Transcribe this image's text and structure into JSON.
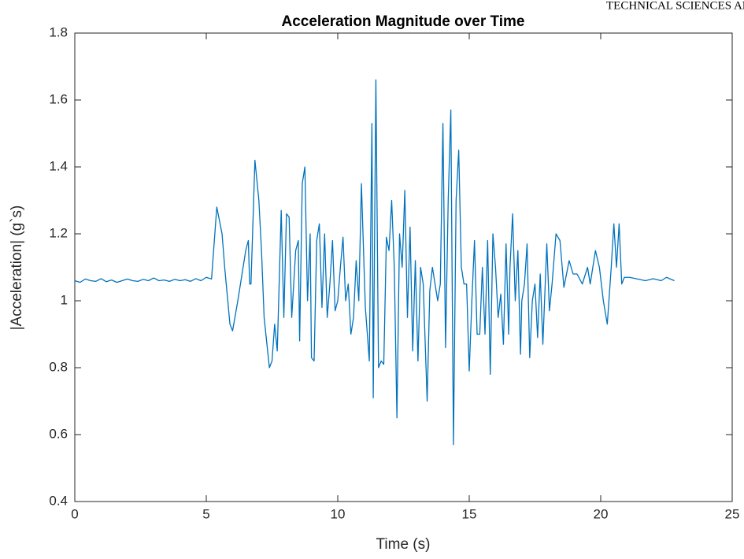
{
  "page_header": "TECHNICAL SCIENCES AND TECH",
  "chart_data": {
    "type": "line",
    "title": "Acceleration Magnitude over Time",
    "x_label": "Time (s)",
    "y_label": "|Acceleration| (g`s)",
    "xlim": [
      0,
      25
    ],
    "xticks": [
      0,
      5,
      10,
      15,
      20,
      25
    ],
    "ylim": [
      0.4,
      1.8
    ],
    "yticks": [
      0.4,
      0.6,
      0.8,
      1,
      1.2,
      1.4,
      1.6,
      1.8
    ],
    "grid": false,
    "series": [
      {
        "name": "|Acceleration|",
        "color": "#0072bd",
        "x": [
          0,
          0.2,
          0.4,
          0.6,
          0.8,
          1.0,
          1.2,
          1.4,
          1.6,
          1.8,
          2.0,
          2.2,
          2.4,
          2.6,
          2.8,
          3.0,
          3.2,
          3.4,
          3.6,
          3.8,
          4.0,
          4.2,
          4.4,
          4.6,
          4.8,
          5.0,
          5.2,
          5.4,
          5.6,
          5.7,
          5.9,
          6.0,
          6.2,
          6.4,
          6.5,
          6.6,
          6.65,
          6.7,
          6.85,
          7.0,
          7.1,
          7.2,
          7.4,
          7.5,
          7.6,
          7.7,
          7.85,
          7.95,
          8.05,
          8.15,
          8.25,
          8.4,
          8.5,
          8.55,
          8.65,
          8.75,
          8.85,
          8.95,
          9.0,
          9.1,
          9.2,
          9.3,
          9.4,
          9.5,
          9.6,
          9.7,
          9.8,
          9.9,
          10.0,
          10.1,
          10.2,
          10.3,
          10.4,
          10.5,
          10.6,
          10.7,
          10.8,
          10.9,
          11.0,
          11.05,
          11.2,
          11.3,
          11.35,
          11.45,
          11.55,
          11.65,
          11.75,
          11.85,
          11.95,
          12.05,
          12.15,
          12.25,
          12.35,
          12.45,
          12.55,
          12.65,
          12.75,
          12.85,
          12.95,
          13.05,
          13.15,
          13.25,
          13.4,
          13.5,
          13.6,
          13.7,
          13.8,
          13.9,
          14.0,
          14.1,
          14.2,
          14.3,
          14.4,
          14.5,
          14.6,
          14.7,
          14.8,
          14.9,
          15.0,
          15.1,
          15.2,
          15.3,
          15.4,
          15.5,
          15.6,
          15.7,
          15.8,
          15.9,
          16.0,
          16.1,
          16.2,
          16.3,
          16.4,
          16.5,
          16.55,
          16.65,
          16.75,
          16.85,
          16.95,
          17.0,
          17.1,
          17.2,
          17.3,
          17.4,
          17.5,
          17.6,
          17.7,
          17.8,
          17.95,
          18.05,
          18.15,
          18.3,
          18.45,
          18.6,
          18.8,
          18.95,
          19.1,
          19.3,
          19.5,
          19.6,
          19.8,
          19.95,
          20.1,
          20.25,
          20.4,
          20.5,
          20.6,
          20.7,
          20.8,
          20.9,
          21.1,
          21.4,
          21.7,
          22.0,
          22.3,
          22.5,
          22.8
        ],
        "values": [
          1.06,
          1.055,
          1.065,
          1.06,
          1.058,
          1.066,
          1.057,
          1.062,
          1.055,
          1.06,
          1.065,
          1.06,
          1.058,
          1.064,
          1.06,
          1.068,
          1.06,
          1.062,
          1.058,
          1.064,
          1.06,
          1.063,
          1.058,
          1.066,
          1.06,
          1.07,
          1.065,
          1.28,
          1.2,
          1.1,
          0.93,
          0.91,
          1.0,
          1.1,
          1.15,
          1.18,
          1.05,
          1.05,
          1.42,
          1.3,
          1.15,
          0.95,
          0.8,
          0.82,
          0.93,
          0.85,
          1.27,
          0.95,
          1.26,
          1.25,
          0.95,
          1.15,
          1.18,
          0.88,
          1.35,
          1.4,
          1.0,
          1.2,
          0.83,
          0.82,
          1.18,
          1.23,
          0.98,
          1.2,
          0.95,
          1.05,
          1.18,
          0.97,
          1.0,
          1.1,
          1.19,
          1.0,
          1.05,
          0.9,
          0.95,
          1.12,
          1.0,
          1.35,
          1.1,
          0.98,
          0.82,
          1.53,
          0.71,
          1.66,
          0.8,
          0.82,
          0.81,
          1.19,
          1.15,
          1.3,
          1.1,
          0.65,
          1.2,
          1.1,
          1.33,
          0.95,
          1.22,
          0.85,
          1.12,
          0.82,
          1.1,
          1.05,
          0.7,
          1.03,
          1.1,
          1.05,
          1.0,
          1.05,
          1.53,
          0.86,
          1.3,
          1.57,
          0.57,
          1.3,
          1.45,
          1.1,
          1.05,
          1.05,
          0.79,
          1.0,
          1.18,
          0.9,
          0.9,
          1.1,
          0.9,
          1.18,
          0.78,
          1.2,
          1.1,
          0.95,
          1.02,
          0.87,
          1.17,
          0.9,
          1.1,
          1.26,
          1.0,
          1.15,
          0.84,
          1.0,
          1.05,
          1.17,
          0.83,
          1.0,
          1.05,
          0.89,
          1.08,
          0.87,
          1.17,
          0.97,
          1.05,
          1.2,
          1.18,
          1.04,
          1.12,
          1.08,
          1.08,
          1.05,
          1.1,
          1.05,
          1.15,
          1.1,
          1.0,
          0.93,
          1.1,
          1.23,
          1.1,
          1.23,
          1.05,
          1.07,
          1.07,
          1.065,
          1.06,
          1.066,
          1.06,
          1.07,
          1.06
        ]
      }
    ]
  }
}
